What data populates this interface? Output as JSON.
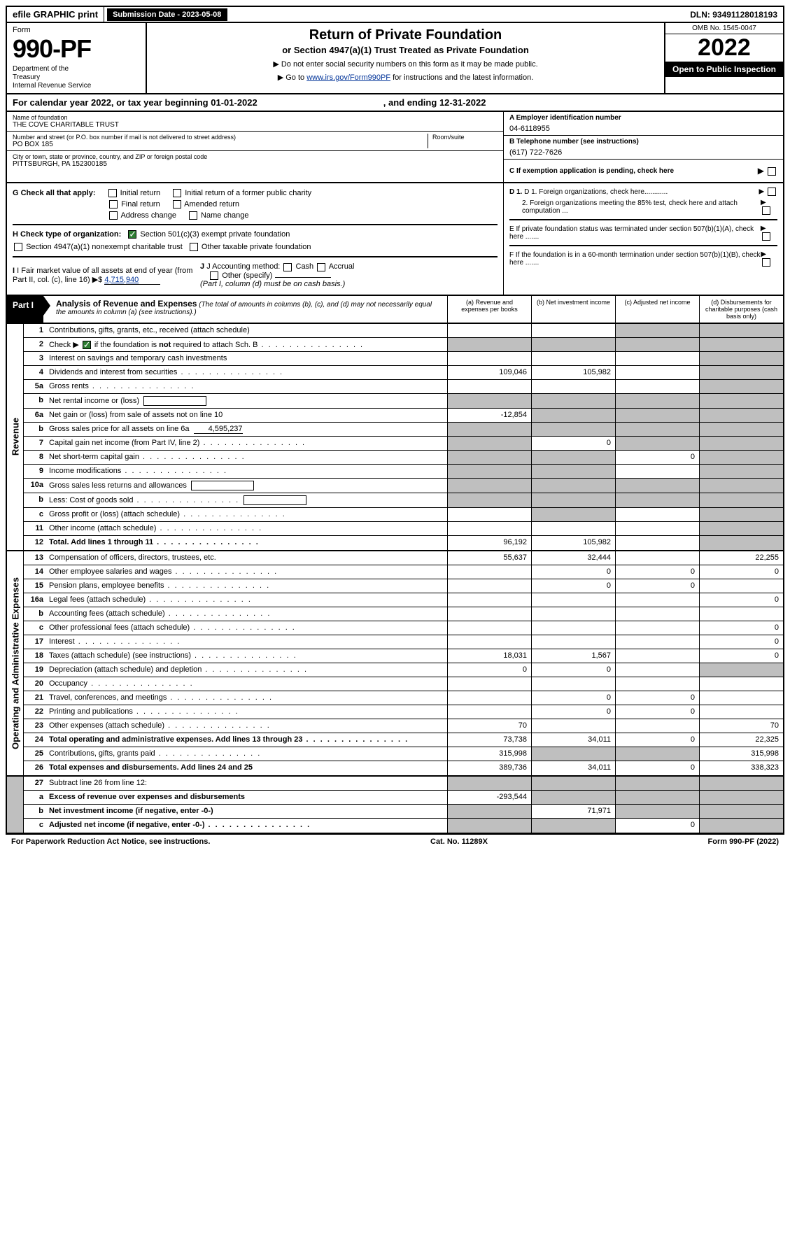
{
  "topbar": {
    "efile": "efile GRAPHIC print",
    "subdate_label": "Submission Date - 2023-05-08",
    "dln": "DLN: 93491128018193"
  },
  "header": {
    "form_label": "Form",
    "form_number": "990-PF",
    "dept": "Department of the Treasury\nInternal Revenue Service",
    "title": "Return of Private Foundation",
    "subtitle": "or Section 4947(a)(1) Trust Treated as Private Foundation",
    "instr1": "▶ Do not enter social security numbers on this form as it may be made public.",
    "instr2_pre": "▶ Go to ",
    "instr2_link": "www.irs.gov/Form990PF",
    "instr2_post": " for instructions and the latest information.",
    "omb": "OMB No. 1545-0047",
    "year": "2022",
    "open": "Open to Public Inspection"
  },
  "cal_year": {
    "pre": "For calendar year 2022, or tax year beginning ",
    "begin": "01-01-2022",
    "mid": ", and ending ",
    "end": "12-31-2022"
  },
  "name_block": {
    "name_label": "Name of foundation",
    "name": "THE COVE CHARITABLE TRUST",
    "addr_label": "Number and street (or P.O. box number if mail is not delivered to street address)",
    "room_label": "Room/suite",
    "addr": "PO BOX 185",
    "city_label": "City or town, state or province, country, and ZIP or foreign postal code",
    "city": "PITTSBURGH, PA  152300185",
    "a_label": "A Employer identification number",
    "a_val": "04-6118955",
    "b_label": "B Telephone number (see instructions)",
    "b_val": "(617) 722-7626",
    "c_label": "C If exemption application is pending, check here"
  },
  "checks": {
    "g_label": "G Check all that apply:",
    "g_items": [
      "Initial return",
      "Initial return of a former public charity",
      "Final return",
      "Amended return",
      "Address change",
      "Name change"
    ],
    "h_label": "H Check type of organization:",
    "h1": "Section 501(c)(3) exempt private foundation",
    "h2": "Section 4947(a)(1) nonexempt charitable trust",
    "h3": "Other taxable private foundation",
    "i_label": "I Fair market value of all assets at end of year (from Part II, col. (c), line 16)",
    "i_val": "4,715,940",
    "j_label": "J Accounting method:",
    "j_cash": "Cash",
    "j_accrual": "Accrual",
    "j_other": "Other (specify)",
    "j_note": "(Part I, column (d) must be on cash basis.)",
    "d1": "D 1. Foreign organizations, check here............",
    "d2": "2. Foreign organizations meeting the 85% test, check here and attach computation ...",
    "e": "E  If private foundation status was terminated under section 507(b)(1)(A), check here .......",
    "f": "F  If the foundation is in a 60-month termination under section 507(b)(1)(B), check here ......."
  },
  "part1": {
    "tab": "Part I",
    "title": "Analysis of Revenue and Expenses",
    "note": " (The total of amounts in columns (b), (c), and (d) may not necessarily equal the amounts in column (a) (see instructions).)",
    "cols": {
      "a": "(a)   Revenue and expenses per books",
      "b": "(b)   Net investment income",
      "c": "(c)   Adjusted net income",
      "d": "(d)   Disbursements for charitable purposes (cash basis only)"
    }
  },
  "revenue_rows": [
    {
      "n": "1",
      "desc": "Contributions, gifts, grants, etc., received (attach schedule)",
      "a": "",
      "b": "",
      "c": "s",
      "d": "s"
    },
    {
      "n": "2",
      "desc": "Check ▶ [✓] if the foundation is not required to attach Sch. B",
      "dots": true,
      "a": "s",
      "b": "s",
      "c": "s",
      "d": "s"
    },
    {
      "n": "3",
      "desc": "Interest on savings and temporary cash investments",
      "a": "",
      "b": "",
      "c": "",
      "d": "s"
    },
    {
      "n": "4",
      "desc": "Dividends and interest from securities",
      "dots": true,
      "a": "109,046",
      "b": "105,982",
      "c": "",
      "d": "s"
    },
    {
      "n": "5a",
      "desc": "Gross rents",
      "dots": true,
      "a": "",
      "b": "",
      "c": "",
      "d": "s"
    },
    {
      "n": "b",
      "desc": "Net rental income or (loss)",
      "box": true,
      "a": "s",
      "b": "s",
      "c": "s",
      "d": "s"
    },
    {
      "n": "6a",
      "desc": "Net gain or (loss) from sale of assets not on line 10",
      "a": "-12,854",
      "b": "s",
      "c": "s",
      "d": "s"
    },
    {
      "n": "b",
      "desc": "Gross sales price for all assets on line 6a",
      "under": "4,595,237",
      "a": "s",
      "b": "s",
      "c": "s",
      "d": "s"
    },
    {
      "n": "7",
      "desc": "Capital gain net income (from Part IV, line 2)",
      "dots": true,
      "a": "s",
      "b": "0",
      "c": "s",
      "d": "s"
    },
    {
      "n": "8",
      "desc": "Net short-term capital gain",
      "dots": true,
      "a": "s",
      "b": "s",
      "c": "0",
      "d": "s"
    },
    {
      "n": "9",
      "desc": "Income modifications",
      "dots": true,
      "a": "s",
      "b": "s",
      "c": "",
      "d": "s"
    },
    {
      "n": "10a",
      "desc": "Gross sales less returns and allowances",
      "box": true,
      "a": "s",
      "b": "s",
      "c": "s",
      "d": "s"
    },
    {
      "n": "b",
      "desc": "Less: Cost of goods sold",
      "dots": true,
      "box": true,
      "a": "s",
      "b": "s",
      "c": "s",
      "d": "s"
    },
    {
      "n": "c",
      "desc": "Gross profit or (loss) (attach schedule)",
      "dots": true,
      "a": "",
      "b": "s",
      "c": "",
      "d": "s"
    },
    {
      "n": "11",
      "desc": "Other income (attach schedule)",
      "dots": true,
      "a": "",
      "b": "",
      "c": "",
      "d": "s"
    },
    {
      "n": "12",
      "desc": "Total. Add lines 1 through 11",
      "dots": true,
      "bold": true,
      "a": "96,192",
      "b": "105,982",
      "c": "",
      "d": "s"
    }
  ],
  "expense_rows": [
    {
      "n": "13",
      "desc": "Compensation of officers, directors, trustees, etc.",
      "a": "55,637",
      "b": "32,444",
      "c": "",
      "d": "22,255"
    },
    {
      "n": "14",
      "desc": "Other employee salaries and wages",
      "dots": true,
      "a": "",
      "b": "0",
      "c": "0",
      "d": "0"
    },
    {
      "n": "15",
      "desc": "Pension plans, employee benefits",
      "dots": true,
      "a": "",
      "b": "0",
      "c": "0",
      "d": ""
    },
    {
      "n": "16a",
      "desc": "Legal fees (attach schedule)",
      "dots": true,
      "a": "",
      "b": "",
      "c": "",
      "d": "0"
    },
    {
      "n": "b",
      "desc": "Accounting fees (attach schedule)",
      "dots": true,
      "a": "",
      "b": "",
      "c": "",
      "d": ""
    },
    {
      "n": "c",
      "desc": "Other professional fees (attach schedule)",
      "dots": true,
      "a": "",
      "b": "",
      "c": "",
      "d": "0"
    },
    {
      "n": "17",
      "desc": "Interest",
      "dots": true,
      "a": "",
      "b": "",
      "c": "",
      "d": "0"
    },
    {
      "n": "18",
      "desc": "Taxes (attach schedule) (see instructions)",
      "dots": true,
      "a": "18,031",
      "b": "1,567",
      "c": "",
      "d": "0"
    },
    {
      "n": "19",
      "desc": "Depreciation (attach schedule) and depletion",
      "dots": true,
      "a": "0",
      "b": "0",
      "c": "",
      "d": "s"
    },
    {
      "n": "20",
      "desc": "Occupancy",
      "dots": true,
      "a": "",
      "b": "",
      "c": "",
      "d": ""
    },
    {
      "n": "21",
      "desc": "Travel, conferences, and meetings",
      "dots": true,
      "a": "",
      "b": "0",
      "c": "0",
      "d": ""
    },
    {
      "n": "22",
      "desc": "Printing and publications",
      "dots": true,
      "a": "",
      "b": "0",
      "c": "0",
      "d": ""
    },
    {
      "n": "23",
      "desc": "Other expenses (attach schedule)",
      "dots": true,
      "a": "70",
      "b": "",
      "c": "",
      "d": "70"
    },
    {
      "n": "24",
      "desc": "Total operating and administrative expenses. Add lines 13 through 23",
      "dots": true,
      "bold": true,
      "a": "73,738",
      "b": "34,011",
      "c": "0",
      "d": "22,325"
    },
    {
      "n": "25",
      "desc": "Contributions, gifts, grants paid",
      "dots": true,
      "a": "315,998",
      "b": "s",
      "c": "s",
      "d": "315,998"
    },
    {
      "n": "26",
      "desc": "Total expenses and disbursements. Add lines 24 and 25",
      "bold": true,
      "a": "389,736",
      "b": "34,011",
      "c": "0",
      "d": "338,323"
    }
  ],
  "bottom_rows": [
    {
      "n": "27",
      "desc": "Subtract line 26 from line 12:",
      "a": "s",
      "b": "s",
      "c": "s",
      "d": "s"
    },
    {
      "n": "a",
      "desc": "Excess of revenue over expenses and disbursements",
      "bold": true,
      "a": "-293,544",
      "b": "s",
      "c": "s",
      "d": "s"
    },
    {
      "n": "b",
      "desc": "Net investment income (if negative, enter -0-)",
      "bold": true,
      "a": "s",
      "b": "71,971",
      "c": "s",
      "d": "s"
    },
    {
      "n": "c",
      "desc": "Adjusted net income (if negative, enter -0-)",
      "dots": true,
      "bold": true,
      "a": "s",
      "b": "s",
      "c": "0",
      "d": "s"
    }
  ],
  "footer": {
    "left": "For Paperwork Reduction Act Notice, see instructions.",
    "mid": "Cat. No. 11289X",
    "right": "Form 990-PF (2022)"
  },
  "side_labels": {
    "rev": "Revenue",
    "exp": "Operating and Administrative Expenses"
  }
}
